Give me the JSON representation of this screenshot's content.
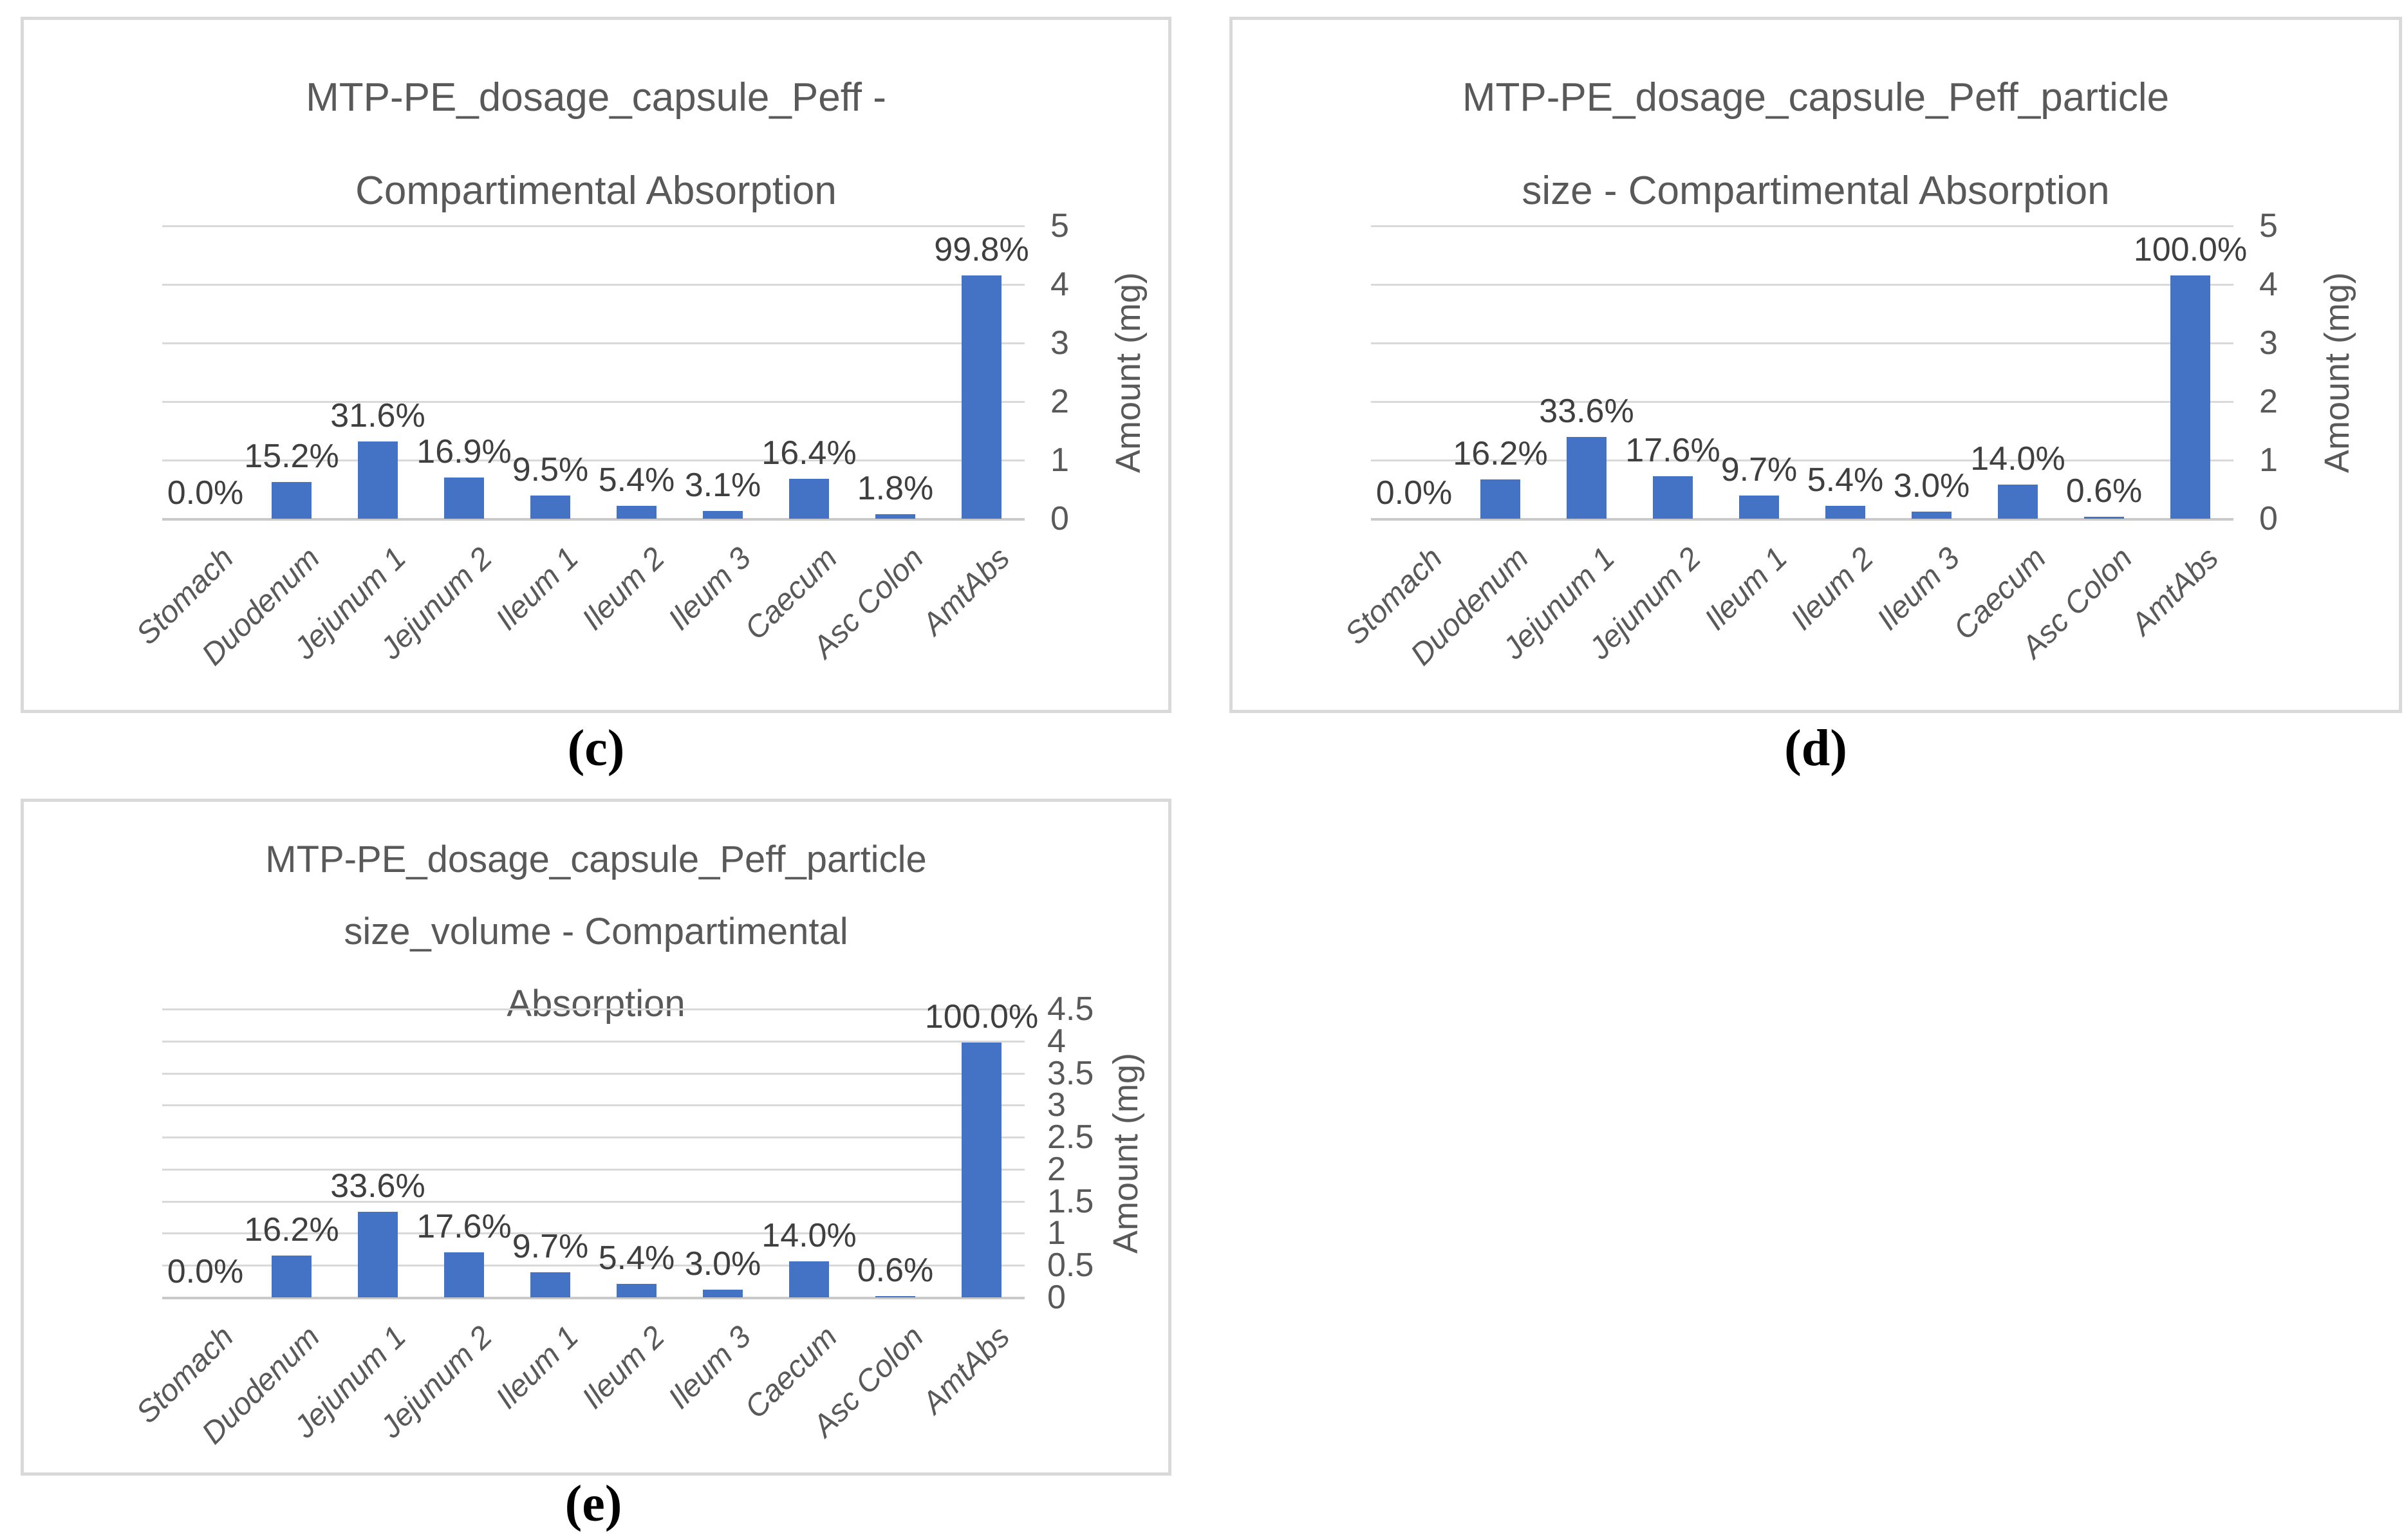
{
  "page": {
    "background": "#ffffff"
  },
  "chart_data": [
    {
      "id": "c",
      "type": "bar",
      "title": "MTP-PE_dosage_capsule_Peff -\nCompartimental Absorption",
      "caption": "(c)",
      "categories": [
        "Stomach",
        "Duodenum",
        "Jejunum 1",
        "Jejunum 2",
        "Ileum 1",
        "Ileum 2",
        "Ileum 3",
        "Caecum",
        "Asc Colon",
        "AmtAbs"
      ],
      "percent_labels": [
        "0.0%",
        "15.2%",
        "31.6%",
        "16.9%",
        "9.5%",
        "5.4%",
        "3.1%",
        "16.4%",
        "1.8%",
        "99.8%"
      ],
      "values_mg": [
        0,
        0.63,
        1.32,
        0.7,
        0.4,
        0.22,
        0.13,
        0.68,
        0.08,
        4.15
      ],
      "ylabel": "Amount (mg)",
      "ylim": [
        0,
        5
      ],
      "ytick_step": 1,
      "yticks": [
        "0",
        "1",
        "2",
        "3",
        "4",
        "5"
      ],
      "bar_color": "#4472C4",
      "grid": true,
      "legend": "none",
      "y_axis_side": "right"
    },
    {
      "id": "d",
      "type": "bar",
      "title": "MTP-PE_dosage_capsule_Peff_particle\nsize - Compartimental Absorption",
      "caption": "(d)",
      "categories": [
        "Stomach",
        "Duodenum",
        "Jejunum 1",
        "Jejunum 2",
        "Ileum 1",
        "Ileum 2",
        "Ileum 3",
        "Caecum",
        "Asc Colon",
        "AmtAbs"
      ],
      "percent_labels": [
        "0.0%",
        "16.2%",
        "33.6%",
        "17.6%",
        "9.7%",
        "5.4%",
        "3.0%",
        "14.0%",
        "0.6%",
        "100.0%"
      ],
      "values_mg": [
        0,
        0.67,
        1.4,
        0.73,
        0.4,
        0.22,
        0.12,
        0.58,
        0.03,
        4.15
      ],
      "ylabel": "Amount (mg)",
      "ylim": [
        0,
        5
      ],
      "ytick_step": 1,
      "yticks": [
        "0",
        "1",
        "2",
        "3",
        "4",
        "5"
      ],
      "bar_color": "#4472C4",
      "grid": true,
      "legend": "none",
      "y_axis_side": "right"
    },
    {
      "id": "e",
      "type": "bar",
      "title": "MTP-PE_dosage_capsule_Peff_particle\nsize_volume - Compartimental\nAbsorption",
      "caption": "(e)",
      "categories": [
        "Stomach",
        "Duodenum",
        "Jejunum 1",
        "Jejunum 2",
        "Ileum 1",
        "Ileum 2",
        "Ileum 3",
        "Caecum",
        "Asc Colon",
        "AmtAbs"
      ],
      "percent_labels": [
        "0.0%",
        "16.2%",
        "33.6%",
        "17.6%",
        "9.7%",
        "5.4%",
        "3.0%",
        "14.0%",
        "0.6%",
        "100.0%"
      ],
      "values_mg": [
        0,
        0.65,
        1.34,
        0.7,
        0.39,
        0.21,
        0.12,
        0.56,
        0.02,
        3.98
      ],
      "ylabel": "Amount (mg)",
      "ylim": [
        0,
        4.5
      ],
      "ytick_step": 0.5,
      "yticks": [
        "0",
        "0.5",
        "1",
        "1.5",
        "2",
        "2.5",
        "3",
        "3.5",
        "4",
        "4.5"
      ],
      "bar_color": "#4472C4",
      "grid": true,
      "legend": "none",
      "y_axis_side": "right"
    }
  ]
}
